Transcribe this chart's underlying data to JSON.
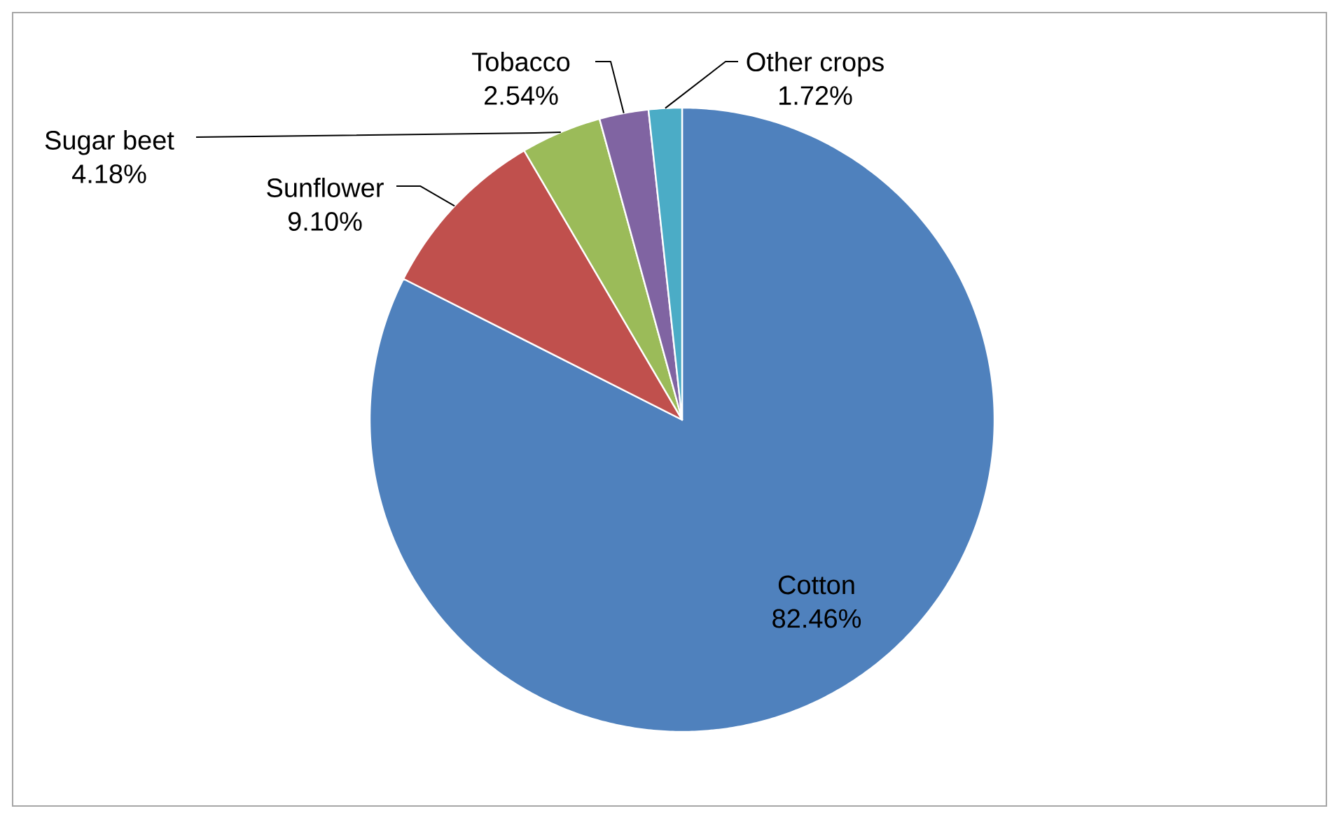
{
  "chart_data": {
    "type": "pie",
    "categories": [
      "Cotton",
      "Sunflower",
      "Sugar beet",
      "Tobacco",
      "Other crops"
    ],
    "values": [
      82.46,
      9.1,
      4.18,
      2.54,
      1.72
    ],
    "value_labels": [
      "82.46%",
      "9.10%",
      "4.18%",
      "2.54%",
      "1.72%"
    ],
    "colors": [
      "#4f81bd",
      "#c0504d",
      "#9bbb59",
      "#8064a2",
      "#4bacc6"
    ]
  }
}
